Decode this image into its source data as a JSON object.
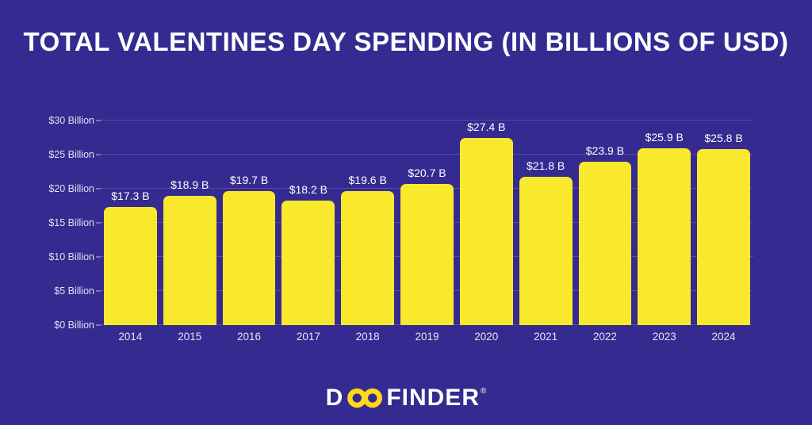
{
  "page": {
    "background_color": "#352a90"
  },
  "header": {
    "title": "TOTAL VALENTINES DAY SPENDING (IN BILLIONS OF USD)"
  },
  "chart_data": {
    "type": "bar",
    "title": "TOTAL VALENTINES DAY SPENDING (IN BILLIONS OF USD)",
    "categories": [
      "2014",
      "2015",
      "2016",
      "2017",
      "2018",
      "2019",
      "2020",
      "2021",
      "2022",
      "2023",
      "2024"
    ],
    "values": [
      17.3,
      18.9,
      19.7,
      18.2,
      19.6,
      20.7,
      27.4,
      21.8,
      23.9,
      25.9,
      25.8
    ],
    "value_labels": [
      "$17.3 B",
      "$18.9 B",
      "$19.7 B",
      "$18.2 B",
      "$19.6 B",
      "$20.7 B",
      "$27.4 B",
      "$21.8 B",
      "$23.9 B",
      "$25.9 B",
      "$25.8 B"
    ],
    "y_ticks": [
      "$0 Billion",
      "$5 Billion",
      "$10 Billion",
      "$15 Billion",
      "$20 Billion",
      "$25 Billion",
      "$30 Billion"
    ],
    "ylim": [
      0,
      30
    ],
    "xlabel": "",
    "ylabel": "",
    "grid": true,
    "legend": "none",
    "bar_color": "#f9e92c",
    "gridline_color": "rgba(255,255,255,0.16)",
    "label_color": "#ffffff"
  },
  "footer": {
    "logo": {
      "brand": "DOOFINDER",
      "prefix": "D",
      "infinity_icon": "infinity-icon",
      "suffix": "FINDER",
      "registered": "®",
      "text_color": "#ffffff",
      "accent_color": "#ffd81c"
    }
  }
}
